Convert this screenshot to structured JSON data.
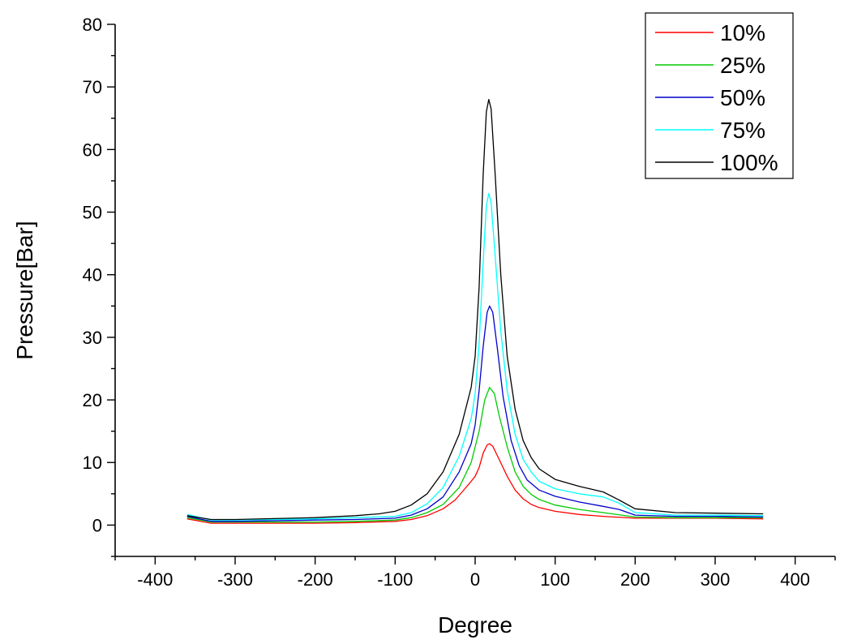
{
  "chart_data": {
    "type": "line",
    "title": "",
    "xlabel": "Degree",
    "ylabel": "Pressure[Bar]",
    "xlim": [
      -450,
      450
    ],
    "ylim": [
      -5,
      80
    ],
    "x_ticks": [
      -400,
      -300,
      -200,
      -100,
      0,
      100,
      200,
      300,
      400
    ],
    "y_ticks": [
      0,
      10,
      20,
      30,
      40,
      50,
      60,
      70,
      80
    ],
    "grid": false,
    "legend_position": "top-right",
    "series": [
      {
        "name": "10%",
        "color": "#ff0000",
        "points": [
          [
            -360,
            1.0
          ],
          [
            -330,
            0.3
          ],
          [
            -300,
            0.3
          ],
          [
            -200,
            0.3
          ],
          [
            -150,
            0.4
          ],
          [
            -100,
            0.6
          ],
          [
            -80,
            0.9
          ],
          [
            -60,
            1.5
          ],
          [
            -40,
            2.6
          ],
          [
            -25,
            4.0
          ],
          [
            -15,
            5.5
          ],
          [
            -5,
            7.0
          ],
          [
            0,
            7.8
          ],
          [
            5,
            9.2
          ],
          [
            10,
            11.5
          ],
          [
            15,
            12.8
          ],
          [
            18,
            13.0
          ],
          [
            22,
            12.6
          ],
          [
            30,
            10.5
          ],
          [
            40,
            7.8
          ],
          [
            50,
            5.6
          ],
          [
            60,
            4.2
          ],
          [
            70,
            3.3
          ],
          [
            80,
            2.8
          ],
          [
            100,
            2.2
          ],
          [
            130,
            1.7
          ],
          [
            160,
            1.4
          ],
          [
            200,
            1.1
          ],
          [
            250,
            1.1
          ],
          [
            300,
            1.1
          ],
          [
            360,
            1.0
          ]
        ]
      },
      {
        "name": "25%",
        "color": "#00cc00",
        "points": [
          [
            -360,
            1.2
          ],
          [
            -330,
            0.5
          ],
          [
            -300,
            0.5
          ],
          [
            -200,
            0.5
          ],
          [
            -150,
            0.6
          ],
          [
            -100,
            0.8
          ],
          [
            -80,
            1.2
          ],
          [
            -60,
            2.0
          ],
          [
            -40,
            3.3
          ],
          [
            -20,
            6.0
          ],
          [
            -5,
            10.0
          ],
          [
            5,
            15.0
          ],
          [
            12,
            20.0
          ],
          [
            18,
            22.0
          ],
          [
            24,
            21.0
          ],
          [
            30,
            17.5
          ],
          [
            40,
            12.5
          ],
          [
            50,
            8.5
          ],
          [
            60,
            6.2
          ],
          [
            70,
            4.9
          ],
          [
            80,
            4.1
          ],
          [
            100,
            3.2
          ],
          [
            130,
            2.5
          ],
          [
            160,
            2.0
          ],
          [
            200,
            1.3
          ],
          [
            250,
            1.2
          ],
          [
            300,
            1.2
          ],
          [
            360,
            1.2
          ]
        ]
      },
      {
        "name": "50%",
        "color": "#0000cc",
        "points": [
          [
            -360,
            1.4
          ],
          [
            -330,
            0.6
          ],
          [
            -300,
            0.6
          ],
          [
            -200,
            0.8
          ],
          [
            -150,
            0.9
          ],
          [
            -100,
            1.1
          ],
          [
            -80,
            1.6
          ],
          [
            -60,
            2.6
          ],
          [
            -40,
            4.5
          ],
          [
            -20,
            8.5
          ],
          [
            -5,
            13.0
          ],
          [
            0,
            16.0
          ],
          [
            5,
            21.5
          ],
          [
            10,
            28.5
          ],
          [
            15,
            34.0
          ],
          [
            18,
            35.0
          ],
          [
            22,
            34.0
          ],
          [
            28,
            28.0
          ],
          [
            35,
            20.5
          ],
          [
            45,
            13.5
          ],
          [
            55,
            9.5
          ],
          [
            65,
            7.2
          ],
          [
            80,
            5.6
          ],
          [
            100,
            4.6
          ],
          [
            130,
            3.7
          ],
          [
            160,
            3.0
          ],
          [
            180,
            2.5
          ],
          [
            200,
            1.6
          ],
          [
            250,
            1.4
          ],
          [
            300,
            1.4
          ],
          [
            360,
            1.3
          ]
        ]
      },
      {
        "name": "75%",
        "color": "#00ffff",
        "points": [
          [
            -360,
            1.7
          ],
          [
            -330,
            0.8
          ],
          [
            -300,
            0.8
          ],
          [
            -200,
            1.0
          ],
          [
            -150,
            1.2
          ],
          [
            -100,
            1.4
          ],
          [
            -80,
            2.0
          ],
          [
            -60,
            3.4
          ],
          [
            -40,
            6.0
          ],
          [
            -20,
            11.0
          ],
          [
            -5,
            17.0
          ],
          [
            0,
            21.0
          ],
          [
            5,
            29.0
          ],
          [
            10,
            42.0
          ],
          [
            14,
            51.0
          ],
          [
            17,
            53.0
          ],
          [
            20,
            51.5
          ],
          [
            25,
            43.0
          ],
          [
            32,
            31.0
          ],
          [
            40,
            21.5
          ],
          [
            50,
            14.5
          ],
          [
            60,
            10.5
          ],
          [
            70,
            8.5
          ],
          [
            80,
            7.0
          ],
          [
            100,
            5.8
          ],
          [
            130,
            5.0
          ],
          [
            160,
            4.5
          ],
          [
            180,
            3.5
          ],
          [
            200,
            2.0
          ],
          [
            250,
            1.6
          ],
          [
            300,
            1.6
          ],
          [
            360,
            1.5
          ]
        ]
      },
      {
        "name": "100%",
        "color": "#000000",
        "points": [
          [
            -360,
            1.5
          ],
          [
            -330,
            0.9
          ],
          [
            -300,
            0.9
          ],
          [
            -200,
            1.2
          ],
          [
            -150,
            1.5
          ],
          [
            -120,
            1.8
          ],
          [
            -100,
            2.2
          ],
          [
            -80,
            3.2
          ],
          [
            -60,
            5.0
          ],
          [
            -40,
            8.5
          ],
          [
            -20,
            14.5
          ],
          [
            -5,
            22.0
          ],
          [
            0,
            27.0
          ],
          [
            5,
            38.0
          ],
          [
            10,
            56.0
          ],
          [
            14,
            66.0
          ],
          [
            17,
            68.0
          ],
          [
            20,
            66.5
          ],
          [
            25,
            56.0
          ],
          [
            32,
            40.0
          ],
          [
            40,
            27.0
          ],
          [
            50,
            18.5
          ],
          [
            60,
            13.5
          ],
          [
            70,
            10.8
          ],
          [
            80,
            9.0
          ],
          [
            100,
            7.3
          ],
          [
            130,
            6.2
          ],
          [
            160,
            5.3
          ],
          [
            180,
            4.0
          ],
          [
            200,
            2.6
          ],
          [
            250,
            2.0
          ],
          [
            300,
            1.9
          ],
          [
            360,
            1.8
          ]
        ]
      }
    ]
  }
}
